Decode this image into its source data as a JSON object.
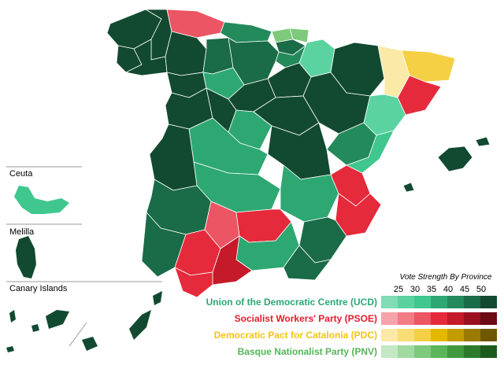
{
  "insets": {
    "ceuta": "Ceuta",
    "melilla": "Melilla",
    "canary": "Canary Islands"
  },
  "legend": {
    "title": "Vote Strength By Province",
    "ticks": [
      "25",
      "30",
      "35",
      "40",
      "45",
      "50"
    ],
    "parties": [
      {
        "label": "Union of the Democratic Centre (UCD)",
        "label_color": "#2aa876",
        "swatches": [
          "#7fdcb4",
          "#5ad3a0",
          "#3fc78d",
          "#2ea873",
          "#238a5c",
          "#1a6b47",
          "#124a31"
        ]
      },
      {
        "label": "Socialist Workers' Party (PSOE)",
        "label_color": "#e8192c",
        "swatches": [
          "#f7a3ab",
          "#f27b86",
          "#ec5563",
          "#e52a3b",
          "#c41a2a",
          "#9a1020",
          "#6c0a16"
        ]
      },
      {
        "label": "Democratic Pact for Catalonia (PDC)",
        "label_color": "#f2c40f",
        "swatches": [
          "#fbe9a8",
          "#f8dc74",
          "#f5cf44",
          "#e5b800",
          "#c49c00",
          "#9b7a00",
          "#6f5700"
        ]
      },
      {
        "label": "Basque Nationalist Party (PNV)",
        "label_color": "#55b558",
        "swatches": [
          "#c5e8c4",
          "#a1d9a0",
          "#7ec97c",
          "#5bb55a",
          "#41993f",
          "#2d7a2c",
          "#1d5a1d"
        ]
      }
    ]
  }
}
